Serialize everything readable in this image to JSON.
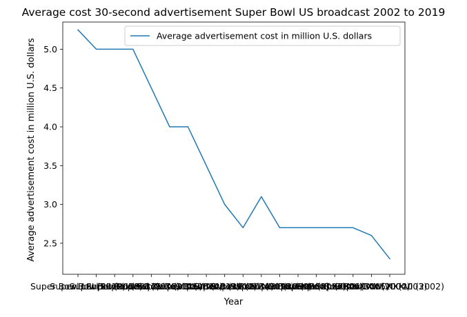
{
  "chart_data": {
    "type": "line",
    "title": "Average cost 30-second advertisement Super Bowl US broadcast 2002 to 2019",
    "xlabel": "Year",
    "ylabel": "Average advertisement cost in million U.S. dollars",
    "categories": [
      "Super Bowl LIII (2019)",
      "Super Bowl LII (2018)",
      "Super Bowl LI (2017)",
      "Super Bowl 50 (2016)",
      "Super Bowl XLIX (2015)",
      "Super Bowl XLVIII (2014)",
      "Super Bowl XLVII (2013)",
      "Super Bowl XLVI (2012)",
      "Super Bowl XLV (2011)",
      "Super Bowl XLIV (2010)",
      "Super Bowl XLIII (2009)",
      "Super Bowl XLII (2008)",
      "Super Bowl XLI (2007)",
      "Super Bowl XL (2006)",
      "Super Bowl XXXIX (2005)",
      "Super Bowl XXXVIII (2004)",
      "Super Bowl XXXVII (2003)",
      "Super Bowl XXXVI (2002)"
    ],
    "series": [
      {
        "name": "Average advertisement cost in million U.S. dollars",
        "color": "#1f77b4",
        "values": [
          5.25,
          5.0,
          5.0,
          5.0,
          4.5,
          4.0,
          4.0,
          3.5,
          3.0,
          2.7,
          3.1,
          2.7,
          2.7,
          2.7,
          2.7,
          2.7,
          2.6,
          2.3
        ]
      }
    ],
    "ylim": [
      2.1,
      5.35
    ],
    "yticks": [
      "2.5",
      "3.0",
      "3.5",
      "4.0",
      "4.5",
      "5.0"
    ],
    "grid": false,
    "legend_position": "top-right"
  }
}
